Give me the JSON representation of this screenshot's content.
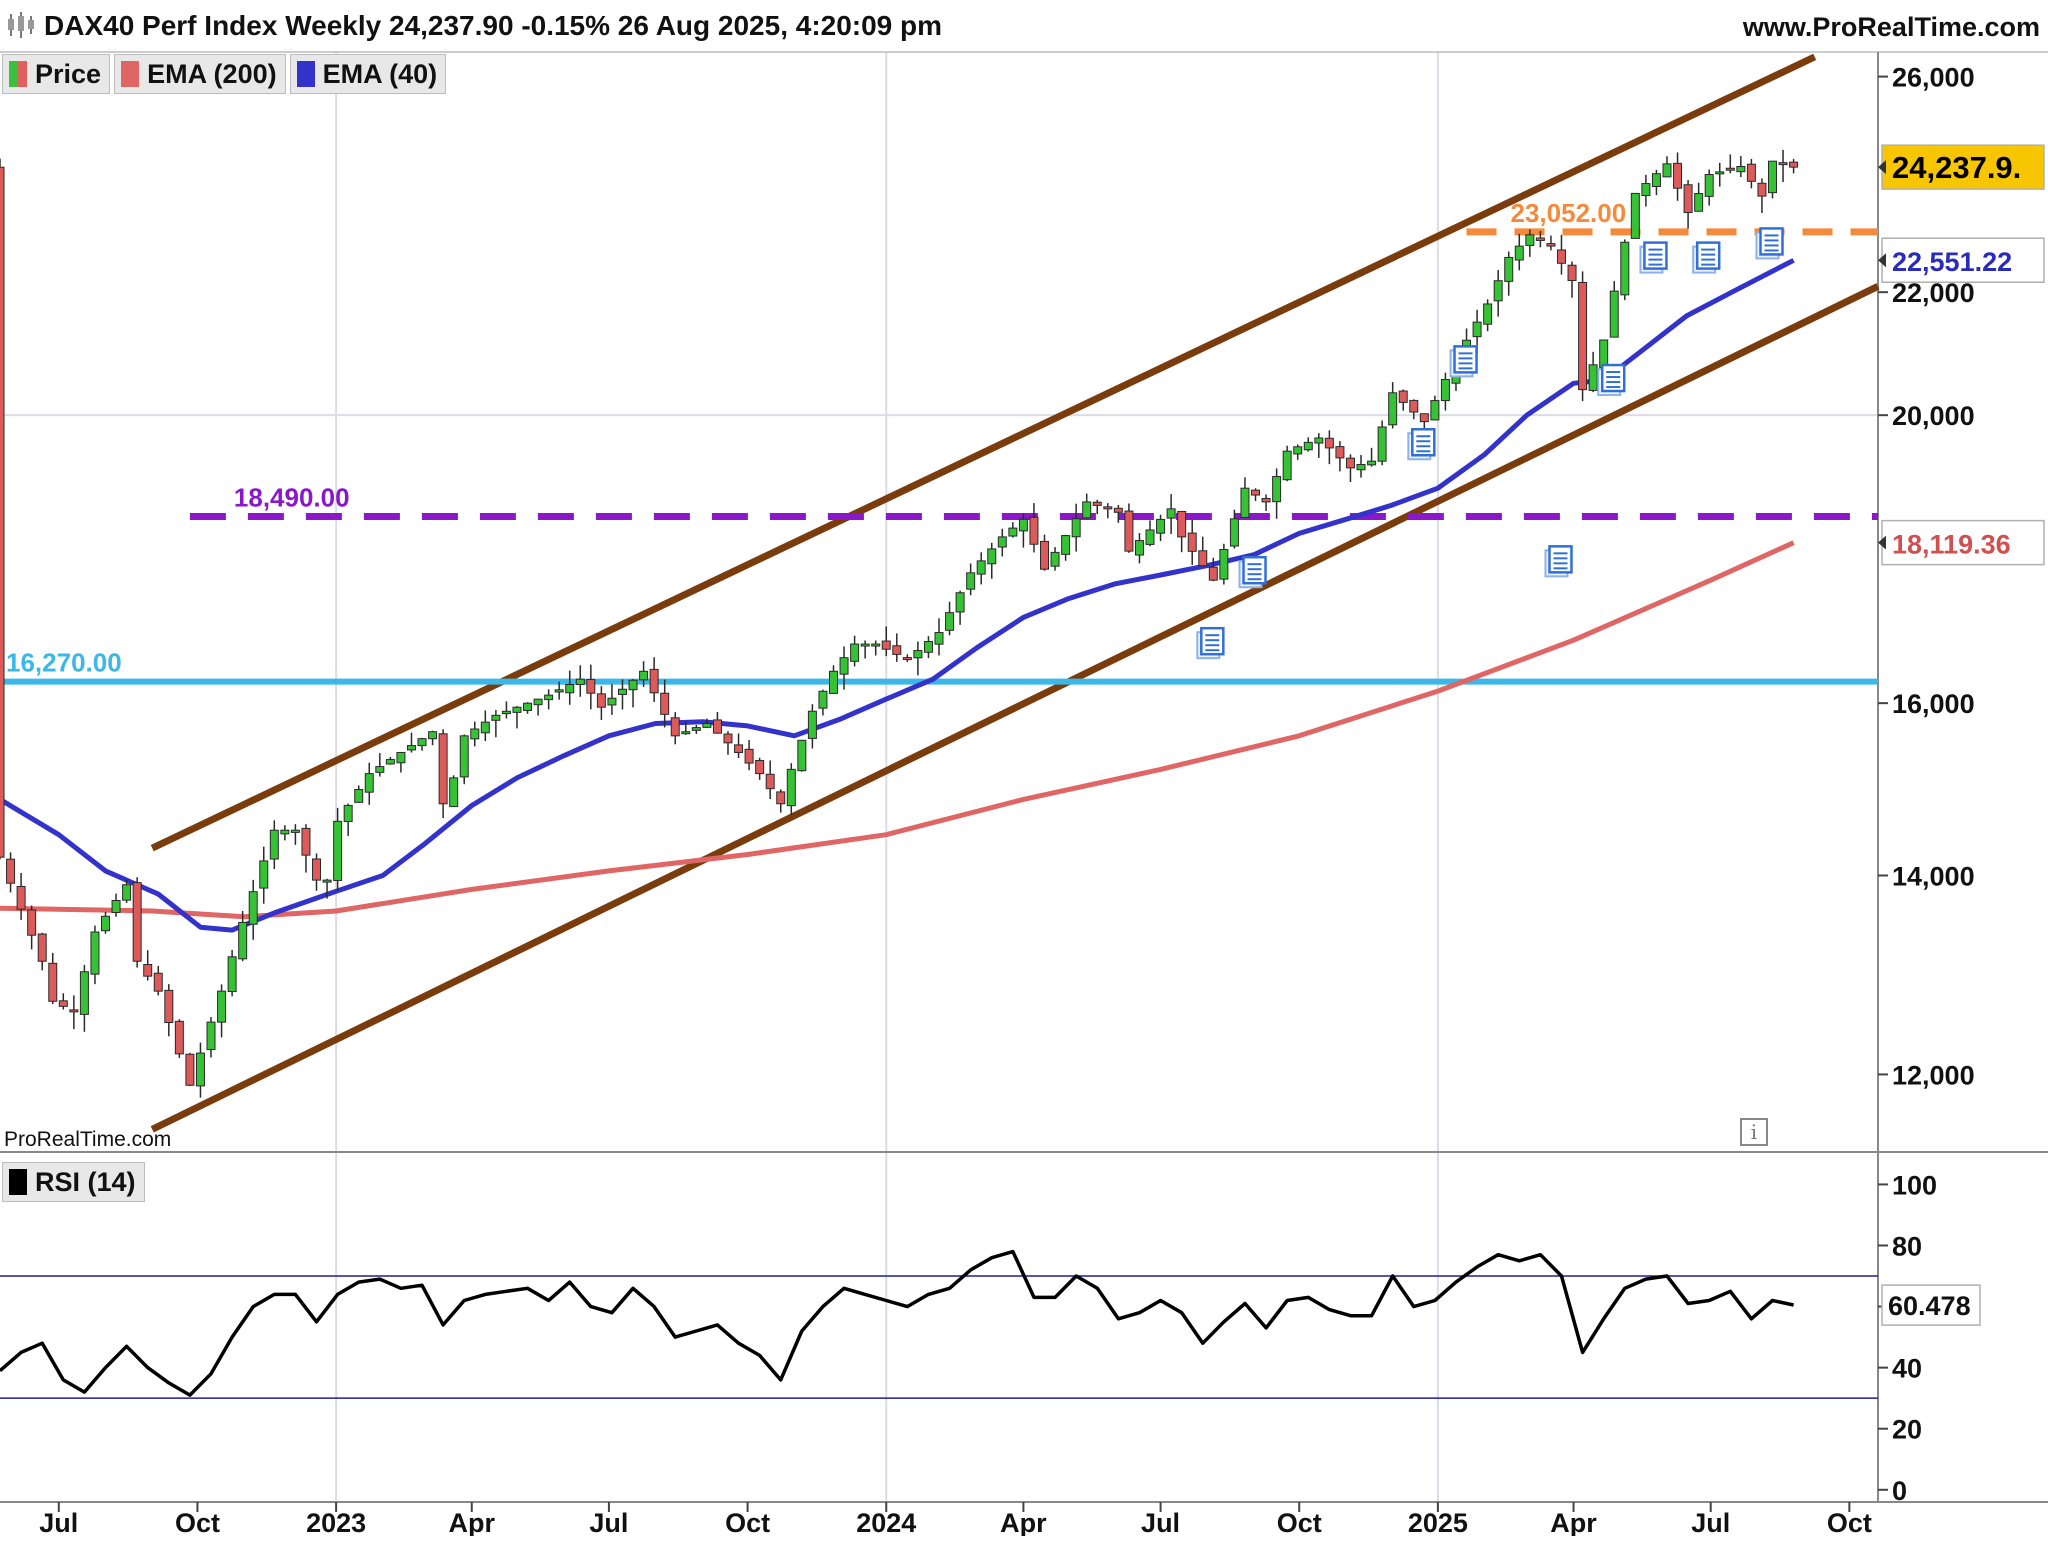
{
  "header": {
    "title": "DAX40 Perf Index Weekly 24,237.90 -0.15% 26 Aug 2025, 4:20:09 pm",
    "source": "www.ProRealTime.com",
    "watermark": "ProRealTime.com"
  },
  "legend": {
    "items": [
      {
        "label": "Price",
        "color": "#3cbf3c",
        "color2": "#e06060"
      },
      {
        "label": "EMA (200)",
        "color": "#e06666"
      },
      {
        "label": "EMA (40)",
        "color": "#3333cc"
      }
    ],
    "rsi_label": "RSI (14)"
  },
  "chart_data": [
    {
      "type": "candlestick",
      "title": "DAX40 Perf Index Weekly",
      "scale": "log",
      "ylim": [
        11300,
        26500
      ],
      "y_ticks": [
        12000,
        14000,
        16000,
        20000,
        22000,
        26000
      ],
      "y_tick_labels": [
        "12,000",
        "14,000",
        "16,000",
        "20,000",
        "22,000",
        "26,000"
      ],
      "x_range": [
        "2022-05-23",
        "2025-10-20"
      ],
      "x_ticks": [
        {
          "date": "2022-07-01",
          "label": "Jul",
          "bold": false
        },
        {
          "date": "2022-10-01",
          "label": "Oct",
          "bold": false
        },
        {
          "date": "2023-01-01",
          "label": "2023",
          "bold": true
        },
        {
          "date": "2023-04-01",
          "label": "Apr",
          "bold": false
        },
        {
          "date": "2023-07-01",
          "label": "Jul",
          "bold": false
        },
        {
          "date": "2023-10-01",
          "label": "Oct",
          "bold": false
        },
        {
          "date": "2024-01-01",
          "label": "2024",
          "bold": true
        },
        {
          "date": "2024-04-01",
          "label": "Apr",
          "bold": false
        },
        {
          "date": "2024-07-01",
          "label": "Jul",
          "bold": false
        },
        {
          "date": "2024-10-01",
          "label": "Oct",
          "bold": false
        },
        {
          "date": "2025-01-01",
          "label": "2025",
          "bold": true
        },
        {
          "date": "2025-04-01",
          "label": "Apr",
          "bold": false
        },
        {
          "date": "2025-07-01",
          "label": "Jul",
          "bold": false
        },
        {
          "date": "2025-10-01",
          "label": "Oct",
          "bold": false
        }
      ],
      "price_path": [
        [
          "2022-05-23",
          14200
        ],
        [
          "2022-06-20",
          13100
        ],
        [
          "2022-06-27",
          12700
        ],
        [
          "2022-07-11",
          12600
        ],
        [
          "2022-07-25",
          13400
        ],
        [
          "2022-08-15",
          13900
        ],
        [
          "2022-08-22",
          13100
        ],
        [
          "2022-09-05",
          12800
        ],
        [
          "2022-09-26",
          11900
        ],
        [
          "2022-10-03",
          12200
        ],
        [
          "2022-10-17",
          12800
        ],
        [
          "2022-10-31",
          13500
        ],
        [
          "2022-11-21",
          14500
        ],
        [
          "2022-12-05",
          14500
        ],
        [
          "2022-12-19",
          13950
        ],
        [
          "2022-12-26",
          13950
        ],
        [
          "2023-01-02",
          14600
        ],
        [
          "2023-01-23",
          15150
        ],
        [
          "2023-02-13",
          15400
        ],
        [
          "2023-03-06",
          15650
        ],
        [
          "2023-03-13",
          14800
        ],
        [
          "2023-03-20",
          15100
        ],
        [
          "2023-03-27",
          15600
        ],
        [
          "2023-04-17",
          15850
        ],
        [
          "2023-05-22",
          16100
        ],
        [
          "2023-06-12",
          16300
        ],
        [
          "2023-06-26",
          15950
        ],
        [
          "2023-07-24",
          16400
        ],
        [
          "2023-08-14",
          15600
        ],
        [
          "2023-09-04",
          15750
        ],
        [
          "2023-09-25",
          15400
        ],
        [
          "2023-10-09",
          15150
        ],
        [
          "2023-10-23",
          14800
        ],
        [
          "2023-10-30",
          15200
        ],
        [
          "2023-11-13",
          15900
        ],
        [
          "2023-11-27",
          16400
        ],
        [
          "2023-12-11",
          16750
        ],
        [
          "2023-12-25",
          16750
        ],
        [
          "2024-01-15",
          16550
        ],
        [
          "2024-02-05",
          16900
        ],
        [
          "2024-02-26",
          17700
        ],
        [
          "2024-03-18",
          18200
        ],
        [
          "2024-04-01",
          18450
        ],
        [
          "2024-04-15",
          17750
        ],
        [
          "2024-05-13",
          18700
        ],
        [
          "2024-06-03",
          18550
        ],
        [
          "2024-06-10",
          18000
        ],
        [
          "2024-07-08",
          18600
        ],
        [
          "2024-07-15",
          18200
        ],
        [
          "2024-08-05",
          17600
        ],
        [
          "2024-08-26",
          18900
        ],
        [
          "2024-09-09",
          18700
        ],
        [
          "2024-09-23",
          19450
        ],
        [
          "2024-10-14",
          19650
        ],
        [
          "2024-11-04",
          19200
        ],
        [
          "2024-11-18",
          19300
        ],
        [
          "2024-12-02",
          20350
        ],
        [
          "2024-12-23",
          19900
        ],
        [
          "2025-01-13",
          20900
        ],
        [
          "2025-02-03",
          21800
        ],
        [
          "2025-02-17",
          22600
        ],
        [
          "2025-03-03",
          23000
        ],
        [
          "2025-03-17",
          22800
        ],
        [
          "2025-03-31",
          22200
        ],
        [
          "2025-04-07",
          20400
        ],
        [
          "2025-04-21",
          21200
        ],
        [
          "2025-05-12",
          23750
        ],
        [
          "2025-06-02",
          24300
        ],
        [
          "2025-06-16",
          23400
        ],
        [
          "2025-06-30",
          24100
        ],
        [
          "2025-07-21",
          24250
        ],
        [
          "2025-08-04",
          23700
        ],
        [
          "2025-08-11",
          24350
        ],
        [
          "2025-08-25",
          24238
        ]
      ],
      "ema40_path": [
        [
          "2022-05-23",
          14850
        ],
        [
          "2022-07-01",
          14450
        ],
        [
          "2022-08-01",
          14050
        ],
        [
          "2022-09-05",
          13800
        ],
        [
          "2022-10-03",
          13450
        ],
        [
          "2022-10-24",
          13420
        ],
        [
          "2022-11-21",
          13600
        ],
        [
          "2023-01-01",
          13830
        ],
        [
          "2023-02-01",
          14000
        ],
        [
          "2023-03-01",
          14350
        ],
        [
          "2023-04-01",
          14780
        ],
        [
          "2023-05-01",
          15100
        ],
        [
          "2023-06-01",
          15360
        ],
        [
          "2023-07-01",
          15600
        ],
        [
          "2023-08-01",
          15750
        ],
        [
          "2023-09-01",
          15770
        ],
        [
          "2023-10-01",
          15720
        ],
        [
          "2023-11-01",
          15600
        ],
        [
          "2023-12-01",
          15800
        ],
        [
          "2024-01-01",
          16050
        ],
        [
          "2024-02-01",
          16300
        ],
        [
          "2024-03-01",
          16700
        ],
        [
          "2024-04-01",
          17100
        ],
        [
          "2024-05-01",
          17350
        ],
        [
          "2024-06-01",
          17550
        ],
        [
          "2024-07-01",
          17670
        ],
        [
          "2024-08-01",
          17800
        ],
        [
          "2024-09-01",
          17950
        ],
        [
          "2024-10-01",
          18250
        ],
        [
          "2024-11-01",
          18450
        ],
        [
          "2024-12-01",
          18650
        ],
        [
          "2025-01-01",
          18900
        ],
        [
          "2025-02-01",
          19400
        ],
        [
          "2025-03-01",
          20000
        ],
        [
          "2025-04-01",
          20500
        ],
        [
          "2025-04-21",
          20550
        ],
        [
          "2025-05-15",
          21000
        ],
        [
          "2025-06-15",
          21600
        ],
        [
          "2025-07-15",
          22000
        ],
        [
          "2025-08-25",
          22551
        ]
      ],
      "ema200_path": [
        [
          "2022-05-23",
          13650
        ],
        [
          "2022-09-01",
          13620
        ],
        [
          "2022-11-01",
          13560
        ],
        [
          "2023-01-01",
          13620
        ],
        [
          "2023-04-01",
          13850
        ],
        [
          "2023-07-01",
          14050
        ],
        [
          "2023-10-01",
          14230
        ],
        [
          "2024-01-01",
          14450
        ],
        [
          "2024-04-01",
          14850
        ],
        [
          "2024-07-01",
          15200
        ],
        [
          "2024-10-01",
          15600
        ],
        [
          "2025-01-01",
          16150
        ],
        [
          "2025-04-01",
          16800
        ],
        [
          "2025-07-01",
          17600
        ],
        [
          "2025-08-25",
          18119
        ]
      ],
      "levels": [
        {
          "value": 18490,
          "label": "18,490.00",
          "color": "#8a18c8",
          "style": "dashed",
          "from": "2022-09-26",
          "to": "2025-10-20"
        },
        {
          "value": 16270,
          "label": "16,270.00",
          "color": "#3bb7e8",
          "style": "solid",
          "from": "2022-05-23",
          "to": "2025-10-20"
        },
        {
          "value": 23052,
          "label": "23,052.00",
          "color": "#f58a3c",
          "style": "dashed",
          "from": "2025-01-20",
          "to": "2025-10-20"
        }
      ],
      "channel": {
        "color": "#7a3c0c",
        "upper": [
          [
            "2022-09-01",
            14300
          ],
          [
            "2025-09-08",
            26400
          ]
        ],
        "lower": [
          [
            "2022-09-01",
            11500
          ],
          [
            "2025-10-20",
            22100
          ]
        ]
      },
      "value_tags": [
        {
          "value": 24237.9,
          "label": "24,237.9.",
          "bg": "#f7c600",
          "fg": "#000000"
        },
        {
          "value": 22551.22,
          "label": "22,551.22",
          "bg": "#ffffff",
          "fg": "#2b2bbb"
        },
        {
          "value": 18119.36,
          "label": "18,119.36",
          "bg": "#ffffff",
          "fg": "#d05050"
        }
      ],
      "news_icons": [
        {
          "date": "2024-08-05",
          "value": 16800
        },
        {
          "date": "2024-09-02",
          "value": 17750
        },
        {
          "date": "2024-12-23",
          "value": 19600
        },
        {
          "date": "2025-01-20",
          "value": 20900
        },
        {
          "date": "2025-03-24",
          "value": 17900
        },
        {
          "date": "2025-04-28",
          "value": 20600
        },
        {
          "date": "2025-05-26",
          "value": 22650
        },
        {
          "date": "2025-06-30",
          "value": 22650
        },
        {
          "date": "2025-08-11",
          "value": 22900
        }
      ]
    },
    {
      "type": "line",
      "title": "RSI (14)",
      "ylim": [
        -4,
        108
      ],
      "y_ticks": [
        0,
        20,
        40,
        60,
        80,
        100
      ],
      "bands": [
        30,
        70
      ],
      "last_value": 60.478,
      "last_label": "60.478",
      "series": [
        {
          "name": "RSI (14)",
          "color": "#000000",
          "values": [
            [
              "2022-05-23",
              39
            ],
            [
              "2022-06-06",
              45
            ],
            [
              "2022-06-20",
              48
            ],
            [
              "2022-07-04",
              36
            ],
            [
              "2022-07-18",
              32
            ],
            [
              "2022-08-01",
              40
            ],
            [
              "2022-08-15",
              47
            ],
            [
              "2022-08-29",
              40
            ],
            [
              "2022-09-12",
              35
            ],
            [
              "2022-09-26",
              31
            ],
            [
              "2022-10-10",
              38
            ],
            [
              "2022-10-24",
              50
            ],
            [
              "2022-11-07",
              60
            ],
            [
              "2022-11-21",
              64
            ],
            [
              "2022-12-05",
              64
            ],
            [
              "2022-12-19",
              55
            ],
            [
              "2023-01-02",
              64
            ],
            [
              "2023-01-16",
              68
            ],
            [
              "2023-01-30",
              69
            ],
            [
              "2023-02-13",
              66
            ],
            [
              "2023-02-27",
              67
            ],
            [
              "2023-03-13",
              54
            ],
            [
              "2023-03-27",
              62
            ],
            [
              "2023-04-10",
              64
            ],
            [
              "2023-04-24",
              65
            ],
            [
              "2023-05-08",
              66
            ],
            [
              "2023-05-22",
              62
            ],
            [
              "2023-06-05",
              68
            ],
            [
              "2023-06-19",
              60
            ],
            [
              "2023-07-03",
              58
            ],
            [
              "2023-07-17",
              66
            ],
            [
              "2023-07-31",
              60
            ],
            [
              "2023-08-14",
              50
            ],
            [
              "2023-08-28",
              52
            ],
            [
              "2023-09-11",
              54
            ],
            [
              "2023-09-25",
              48
            ],
            [
              "2023-10-09",
              44
            ],
            [
              "2023-10-23",
              36
            ],
            [
              "2023-11-06",
              52
            ],
            [
              "2023-11-20",
              60
            ],
            [
              "2023-12-04",
              66
            ],
            [
              "2023-12-18",
              64
            ],
            [
              "2024-01-01",
              62
            ],
            [
              "2024-01-15",
              60
            ],
            [
              "2024-01-29",
              64
            ],
            [
              "2024-02-12",
              66
            ],
            [
              "2024-02-26",
              72
            ],
            [
              "2024-03-11",
              76
            ],
            [
              "2024-03-25",
              78
            ],
            [
              "2024-04-08",
              63
            ],
            [
              "2024-04-22",
              63
            ],
            [
              "2024-05-06",
              70
            ],
            [
              "2024-05-20",
              66
            ],
            [
              "2024-06-03",
              56
            ],
            [
              "2024-06-17",
              58
            ],
            [
              "2024-07-01",
              62
            ],
            [
              "2024-07-15",
              58
            ],
            [
              "2024-07-29",
              48
            ],
            [
              "2024-08-12",
              55
            ],
            [
              "2024-08-26",
              61
            ],
            [
              "2024-09-09",
              53
            ],
            [
              "2024-09-23",
              62
            ],
            [
              "2024-10-07",
              63
            ],
            [
              "2024-10-21",
              59
            ],
            [
              "2024-11-04",
              57
            ],
            [
              "2024-11-18",
              57
            ],
            [
              "2024-12-02",
              70
            ],
            [
              "2024-12-16",
              60
            ],
            [
              "2024-12-30",
              62
            ],
            [
              "2025-01-13",
              68
            ],
            [
              "2025-01-27",
              73
            ],
            [
              "2025-02-10",
              77
            ],
            [
              "2025-02-24",
              75
            ],
            [
              "2025-03-10",
              77
            ],
            [
              "2025-03-24",
              70
            ],
            [
              "2025-04-07",
              45
            ],
            [
              "2025-04-21",
              56
            ],
            [
              "2025-05-05",
              66
            ],
            [
              "2025-05-19",
              69
            ],
            [
              "2025-06-02",
              70
            ],
            [
              "2025-06-16",
              61
            ],
            [
              "2025-06-30",
              62
            ],
            [
              "2025-07-14",
              65
            ],
            [
              "2025-07-28",
              56
            ],
            [
              "2025-08-11",
              62
            ],
            [
              "2025-08-25",
              60.5
            ]
          ]
        }
      ]
    }
  ]
}
